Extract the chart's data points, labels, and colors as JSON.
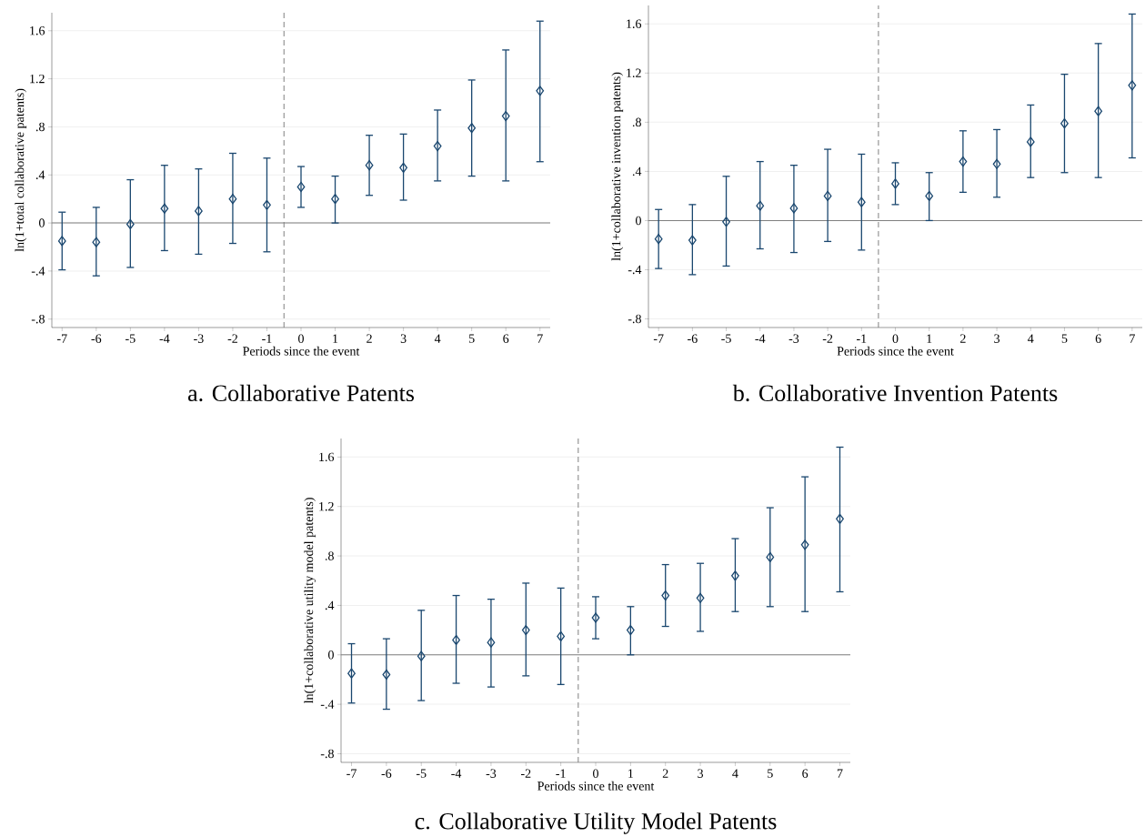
{
  "chart_data": [
    {
      "type": "scatter",
      "title": "a. Collaborative Patents",
      "xlabel": "Periods since the event",
      "ylabel": "ln(1+total collaborative patents)",
      "x": [
        -7,
        -6,
        -5,
        -4,
        -3,
        -2,
        -1,
        0,
        1,
        2,
        3,
        4,
        5,
        6,
        7
      ],
      "series": [
        {
          "color": "#1a476f",
          "values": [
            -0.15,
            -0.16,
            -0.01,
            0.12,
            0.1,
            0.2,
            0.15,
            0.3,
            0.2,
            0.48,
            0.46,
            0.64,
            0.79,
            0.89,
            1.1
          ],
          "errors": [
            [
              -0.39,
              0.09
            ],
            [
              -0.44,
              0.13
            ],
            [
              -0.37,
              0.36
            ],
            [
              -0.23,
              0.48
            ],
            [
              -0.26,
              0.45
            ],
            [
              -0.17,
              0.58
            ],
            [
              -0.24,
              0.54
            ],
            [
              0.13,
              0.47
            ],
            [
              0.0,
              0.39
            ],
            [
              0.23,
              0.73
            ],
            [
              0.19,
              0.74
            ],
            [
              0.35,
              0.94
            ],
            [
              0.39,
              1.19
            ],
            [
              0.35,
              1.44
            ],
            [
              0.51,
              1.68
            ]
          ]
        }
      ],
      "xlim": [
        -7.3,
        7.3
      ],
      "ylim": [
        -0.87,
        1.75
      ],
      "xticks": [
        -7,
        -6,
        -5,
        -4,
        -3,
        -2,
        -1,
        0,
        1,
        2,
        3,
        4,
        5,
        6,
        7
      ],
      "yticks": [
        {
          "value": -0.8,
          "label": "-.8"
        },
        {
          "value": -0.4,
          "label": "-.4"
        },
        0,
        {
          "value": 0.4,
          "label": ".4"
        },
        {
          "value": 0.8,
          "label": ".8"
        },
        1.2,
        1.6
      ],
      "grid": "y",
      "marker": "diamond",
      "ref_lines": [
        {
          "axis": "x",
          "value": -0.5,
          "color": "#808080",
          "line_style": "dashed"
        },
        {
          "axis": "y",
          "value": 0,
          "color": "#808080",
          "line_style": "solid"
        }
      ]
    },
    {
      "type": "scatter",
      "title": "b. Collaborative Invention Patents",
      "xlabel": "Periods since the event",
      "ylabel": "ln(1+collaborative invention patents)",
      "x": [
        -7,
        -6,
        -5,
        -4,
        -3,
        -2,
        -1,
        0,
        1,
        2,
        3,
        4,
        5,
        6,
        7
      ],
      "series": [
        {
          "color": "#1a476f",
          "values": [
            -0.15,
            -0.16,
            -0.01,
            0.12,
            0.1,
            0.2,
            0.15,
            0.3,
            0.2,
            0.48,
            0.46,
            0.64,
            0.79,
            0.89,
            1.1
          ],
          "errors": [
            [
              -0.39,
              0.09
            ],
            [
              -0.44,
              0.13
            ],
            [
              -0.37,
              0.36
            ],
            [
              -0.23,
              0.48
            ],
            [
              -0.26,
              0.45
            ],
            [
              -0.17,
              0.58
            ],
            [
              -0.24,
              0.54
            ],
            [
              0.13,
              0.47
            ],
            [
              0.0,
              0.39
            ],
            [
              0.23,
              0.73
            ],
            [
              0.19,
              0.74
            ],
            [
              0.35,
              0.94
            ],
            [
              0.39,
              1.19
            ],
            [
              0.35,
              1.44
            ],
            [
              0.51,
              1.68
            ]
          ]
        }
      ],
      "xlim": [
        -7.3,
        7.3
      ],
      "ylim": [
        -0.87,
        1.75
      ],
      "xticks": [
        -7,
        -6,
        -5,
        -4,
        -3,
        -2,
        -1,
        0,
        1,
        2,
        3,
        4,
        5,
        6,
        7
      ],
      "yticks": [
        {
          "value": -0.8,
          "label": "-.8"
        },
        {
          "value": -0.4,
          "label": "-.4"
        },
        0,
        {
          "value": 0.4,
          "label": ".4"
        },
        {
          "value": 0.8,
          "label": ".8"
        },
        1.2,
        1.6
      ],
      "grid": "y",
      "marker": "diamond",
      "ref_lines": [
        {
          "axis": "x",
          "value": -0.5,
          "color": "#808080",
          "line_style": "dashed"
        },
        {
          "axis": "y",
          "value": 0,
          "color": "#808080",
          "line_style": "solid"
        }
      ]
    },
    {
      "type": "scatter",
      "title": "c. Collaborative Utility Model Patents",
      "xlabel": "Periods since the event",
      "ylabel": "ln(1+collaborative utility model patents)",
      "x": [
        -7,
        -6,
        -5,
        -4,
        -3,
        -2,
        -1,
        0,
        1,
        2,
        3,
        4,
        5,
        6,
        7
      ],
      "series": [
        {
          "color": "#1a476f",
          "values": [
            -0.15,
            -0.16,
            -0.01,
            0.12,
            0.1,
            0.2,
            0.15,
            0.3,
            0.2,
            0.48,
            0.46,
            0.64,
            0.79,
            0.89,
            1.1
          ],
          "errors": [
            [
              -0.39,
              0.09
            ],
            [
              -0.44,
              0.13
            ],
            [
              -0.37,
              0.36
            ],
            [
              -0.23,
              0.48
            ],
            [
              -0.26,
              0.45
            ],
            [
              -0.17,
              0.58
            ],
            [
              -0.24,
              0.54
            ],
            [
              0.13,
              0.47
            ],
            [
              0.0,
              0.39
            ],
            [
              0.23,
              0.73
            ],
            [
              0.19,
              0.74
            ],
            [
              0.35,
              0.94
            ],
            [
              0.39,
              1.19
            ],
            [
              0.35,
              1.44
            ],
            [
              0.51,
              1.68
            ]
          ]
        }
      ],
      "xlim": [
        -7.3,
        7.3
      ],
      "ylim": [
        -0.87,
        1.75
      ],
      "xticks": [
        -7,
        -6,
        -5,
        -4,
        -3,
        -2,
        -1,
        0,
        1,
        2,
        3,
        4,
        5,
        6,
        7
      ],
      "yticks": [
        {
          "value": -0.8,
          "label": "-.8"
        },
        {
          "value": -0.4,
          "label": "-.4"
        },
        0,
        {
          "value": 0.4,
          "label": ".4"
        },
        {
          "value": 0.8,
          "label": ".8"
        },
        1.2,
        1.6
      ],
      "grid": "y",
      "marker": "diamond",
      "ref_lines": [
        {
          "axis": "x",
          "value": -0.5,
          "color": "#808080",
          "line_style": "dashed"
        },
        {
          "axis": "y",
          "value": 0,
          "color": "#808080",
          "line_style": "solid"
        }
      ]
    }
  ]
}
